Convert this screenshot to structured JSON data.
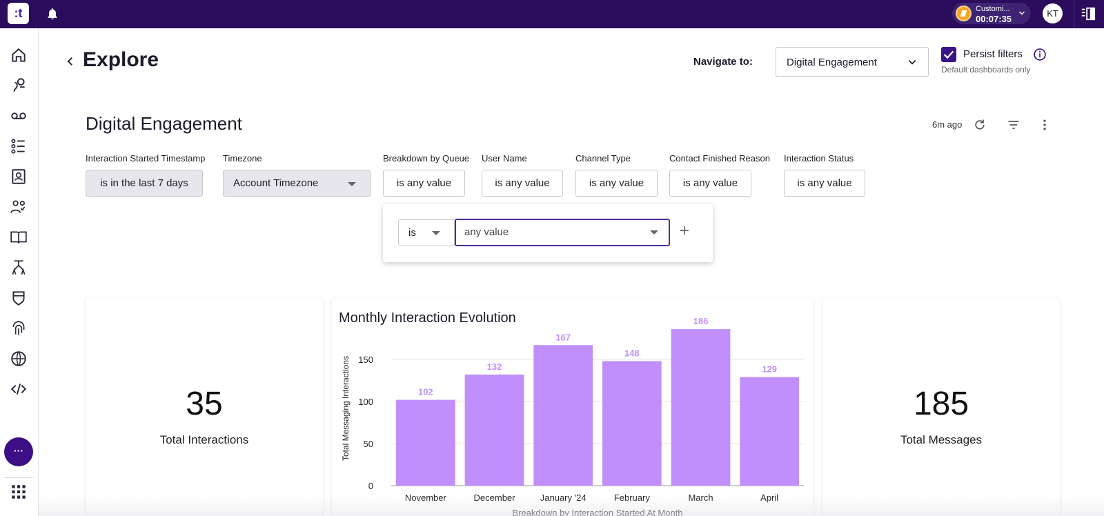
{
  "topbar": {
    "logo_text": ":t",
    "timer": {
      "label": "Customi...",
      "time": "00:07:35"
    },
    "avatar_initials": "KT"
  },
  "leftnav": {
    "items": [
      "home-icon",
      "journeys-icon",
      "voicemail-icon",
      "task-list-icon",
      "contacts-icon",
      "teams-icon",
      "knowledge-book-icon",
      "flows-icon",
      "shield-icon",
      "fingerprint-icon",
      "globe-icon",
      "code-icon"
    ],
    "more_label": "···",
    "apps_icon": "apps-grid-icon"
  },
  "header": {
    "title": "Explore",
    "navigate_label": "Navigate to:",
    "navigate_value": "Digital Engagement",
    "persist_label": "Persist filters",
    "persist_sub": "Default dashboards only"
  },
  "dashboard": {
    "title": "Digital Engagement",
    "last_refresh": "6m ago",
    "filters": [
      {
        "label": "Interaction Started Timestamp",
        "value": "is in the last 7 days"
      },
      {
        "label": "Timezone",
        "value": "Account Timezone"
      },
      {
        "label": "Breakdown by Queue",
        "value": "is any value"
      },
      {
        "label": "User Name",
        "value": "is any value"
      },
      {
        "label": "Channel Type",
        "value": "is any value"
      },
      {
        "label": "Contact Finished Reason",
        "value": "is any value"
      },
      {
        "label": "Interaction Status",
        "value": "is any value"
      }
    ],
    "popover": {
      "operator": "is",
      "value_placeholder": "any value"
    }
  },
  "cards": {
    "total_interactions": {
      "value": "35",
      "label": "Total Interactions"
    },
    "total_messages": {
      "value": "185",
      "label": "Total Messages"
    }
  },
  "chart_data": {
    "type": "bar",
    "title": "Monthly Interaction Evolution",
    "categories": [
      "November",
      "December",
      "January '24",
      "February",
      "March",
      "April"
    ],
    "values": [
      102,
      132,
      167,
      148,
      186,
      129
    ],
    "xlabel": "Breakdown by Interaction Started At Month",
    "ylabel": "Total Messaging Interactions",
    "ylim": [
      0,
      200
    ],
    "yticks": [
      0,
      50,
      100,
      150
    ],
    "grid": true,
    "bar_color": "#c18ffb",
    "label_color": "#c18ffb"
  },
  "colors": {
    "topbar": "#2a0b5c",
    "accent": "#3a138a"
  }
}
